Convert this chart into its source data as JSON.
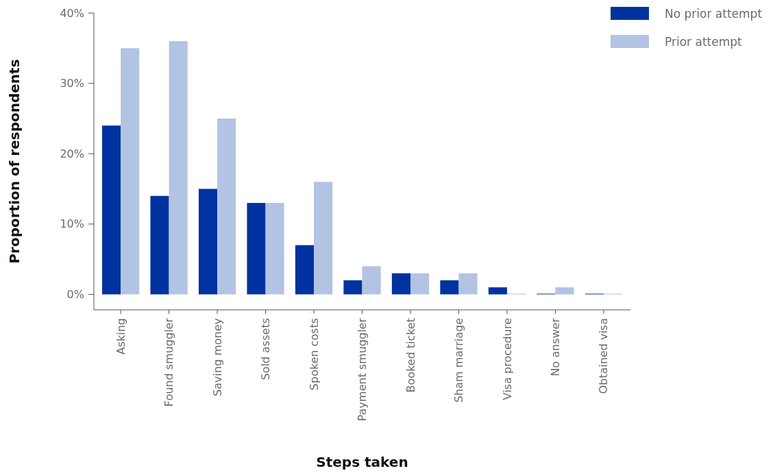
{
  "chart_data": {
    "type": "bar",
    "xlabel": "Steps taken",
    "ylabel": "Proportion of respondents",
    "categories": [
      "Asking",
      "Found smuggler",
      "Saving money",
      "Sold assets",
      "Spoken costs",
      "Payment smuggler",
      "Booked ticket",
      "Sham marriage",
      "Visa procedure",
      "No answer",
      "Obtained visa"
    ],
    "series": [
      {
        "name": "No prior attempt",
        "color": "#0033a0",
        "values": [
          24,
          14,
          15,
          13,
          7,
          2,
          3,
          2,
          1,
          0,
          0
        ]
      },
      {
        "name": "Prior attempt",
        "color": "#b3c3e3",
        "values": [
          35,
          36,
          25,
          13,
          16,
          4,
          3,
          3,
          0,
          1,
          0
        ]
      }
    ],
    "ylim": [
      -2.2,
      40
    ],
    "yticks": [
      {
        "value": 0,
        "label": "0%"
      },
      {
        "value": 10,
        "label": "10%"
      },
      {
        "value": 20,
        "label": "20%"
      },
      {
        "value": 30,
        "label": "30%"
      },
      {
        "value": 40,
        "label": "40%"
      }
    ],
    "grid": false,
    "legend": "top right"
  }
}
